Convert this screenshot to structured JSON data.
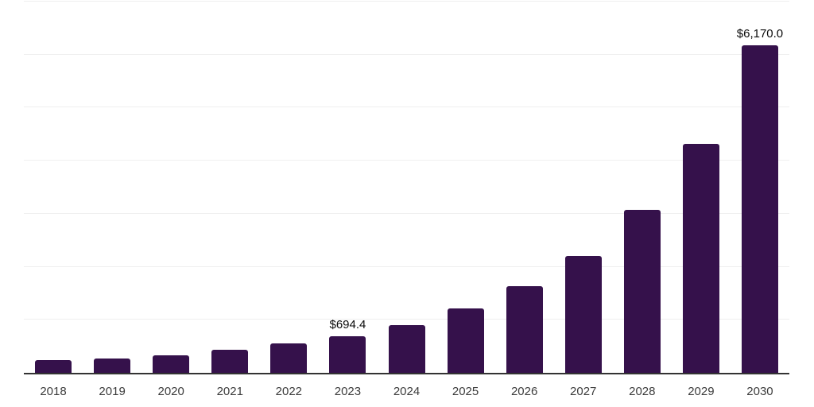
{
  "chart_data": {
    "type": "bar",
    "title": "",
    "xlabel": "",
    "ylabel": "",
    "categories": [
      "2018",
      "2019",
      "2020",
      "2021",
      "2022",
      "2023",
      "2024",
      "2025",
      "2026",
      "2027",
      "2028",
      "2029",
      "2030"
    ],
    "values": [
      245,
      270,
      330,
      437,
      555,
      694.4,
      905,
      1220,
      1630,
      2210,
      3075,
      4320,
      6170
    ],
    "data_labels": {
      "2023": "$694.4",
      "2030": "$6,170.0"
    },
    "ylim": [
      0,
      7000
    ],
    "gridline_interval": 1000,
    "grid": true,
    "legend": false,
    "colors": {
      "bar": "#35114B",
      "axis": "#333333",
      "gridline": "#efefef",
      "tick_label": "#3c3c3c",
      "data_label": "#0a0a0a",
      "background": "#ffffff"
    }
  }
}
